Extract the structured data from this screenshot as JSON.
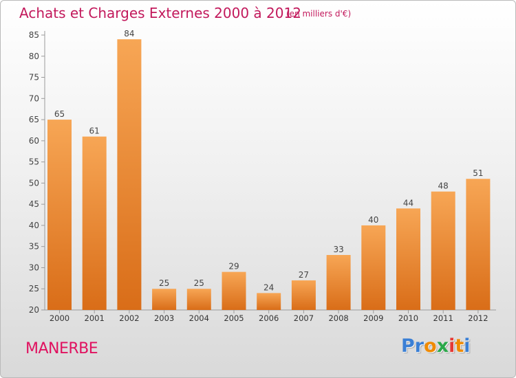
{
  "title": "Achats et Charges Externes 2000 à 2012",
  "unit_note": "(en milliers d'€)",
  "commune": "MANERBE",
  "brand": {
    "letters": [
      "P",
      "r",
      "o",
      "x",
      "i",
      "t",
      "i"
    ],
    "colors": [
      "#3a7fd5",
      "#3a7fd5",
      "#f08a00",
      "#2ba84a",
      "#e53935",
      "#f08a00",
      "#3a7fd5"
    ]
  },
  "colors": {
    "bar_light": "#f7a655",
    "bar_dark": "#d96d18",
    "title": "#c2185b",
    "commune": "#e0115f"
  },
  "chart_data": {
    "type": "bar",
    "title": "Achats et Charges Externes 2000 à 2012",
    "categories": [
      "2000",
      "2001",
      "2002",
      "2003",
      "2004",
      "2005",
      "2006",
      "2007",
      "2008",
      "2009",
      "2010",
      "2011",
      "2012"
    ],
    "values": [
      65,
      61,
      84,
      25,
      25,
      29,
      24,
      27,
      33,
      40,
      44,
      48,
      51
    ],
    "ylim": [
      20,
      85
    ],
    "yticks": [
      20,
      25,
      30,
      35,
      40,
      45,
      50,
      55,
      60,
      65,
      70,
      75,
      80,
      85
    ],
    "grid": false,
    "xlabel": "",
    "ylabel": ""
  }
}
